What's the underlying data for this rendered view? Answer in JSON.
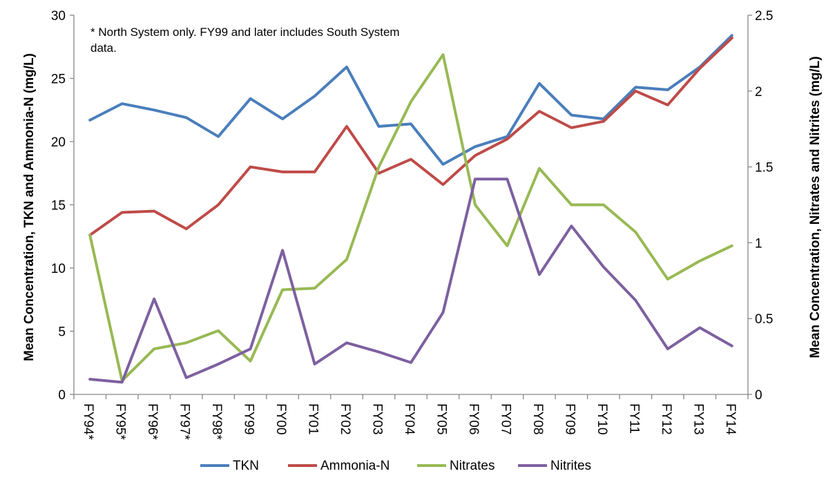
{
  "chart_data": {
    "type": "line",
    "title": "",
    "annotation": "*  North System only.  FY99 and later includes South System data.",
    "xlabel": "",
    "ylabel": "Mean Concentration, TKN and Ammonia-N (mg/L)",
    "y2label": "Mean Concentration, Nitrates and Nitrites (mg/L)",
    "categories": [
      "FY94*",
      "FY95*",
      "FY96*",
      "FY97*",
      "FY98*",
      "FY99",
      "FY00",
      "FY01",
      "FY02",
      "FY03",
      "FY04",
      "FY05",
      "FY06",
      "FY07",
      "FY08",
      "FY09",
      "FY10",
      "FY11",
      "FY12",
      "FY13",
      "FY14"
    ],
    "ylim": [
      0,
      30
    ],
    "yticks": [
      "0",
      "5",
      "10",
      "15",
      "20",
      "25",
      "30"
    ],
    "y2lim": [
      0,
      2.5
    ],
    "y2ticks": [
      "0",
      "0.5",
      "1",
      "1.5",
      "2",
      "2.5"
    ],
    "grid": false,
    "legend_position": "bottom",
    "series": [
      {
        "name": "TKN",
        "axis": "left",
        "color": "#4a7ebb",
        "values": [
          21.7,
          23.0,
          22.5,
          21.9,
          20.4,
          23.4,
          21.8,
          23.6,
          25.9,
          21.2,
          21.4,
          18.2,
          19.6,
          20.4,
          24.6,
          22.1,
          21.8,
          24.3,
          24.1,
          25.9,
          28.4
        ]
      },
      {
        "name": "Ammonia-N",
        "axis": "left",
        "color": "#be4b48",
        "values": [
          12.6,
          14.4,
          14.5,
          13.1,
          15.0,
          18.0,
          17.6,
          17.6,
          21.2,
          17.5,
          18.6,
          16.6,
          18.9,
          20.2,
          22.4,
          21.1,
          21.6,
          24.0,
          22.9,
          25.8,
          28.2
        ]
      },
      {
        "name": "Nitrates",
        "axis": "right",
        "color": "#98b954",
        "values": [
          1.05,
          0.09,
          0.3,
          0.34,
          0.42,
          0.22,
          0.69,
          0.7,
          0.89,
          1.5,
          1.93,
          2.24,
          1.25,
          0.98,
          1.49,
          1.25,
          1.25,
          1.07,
          0.76,
          0.88,
          0.98
        ]
      },
      {
        "name": "Nitrites",
        "axis": "right",
        "color": "#7d60a0",
        "values": [
          0.1,
          0.08,
          0.63,
          0.11,
          0.2,
          0.3,
          0.95,
          0.2,
          0.34,
          0.28,
          0.21,
          0.54,
          1.42,
          1.42,
          0.79,
          1.11,
          0.84,
          0.62,
          0.3,
          0.44,
          0.32
        ]
      }
    ]
  }
}
